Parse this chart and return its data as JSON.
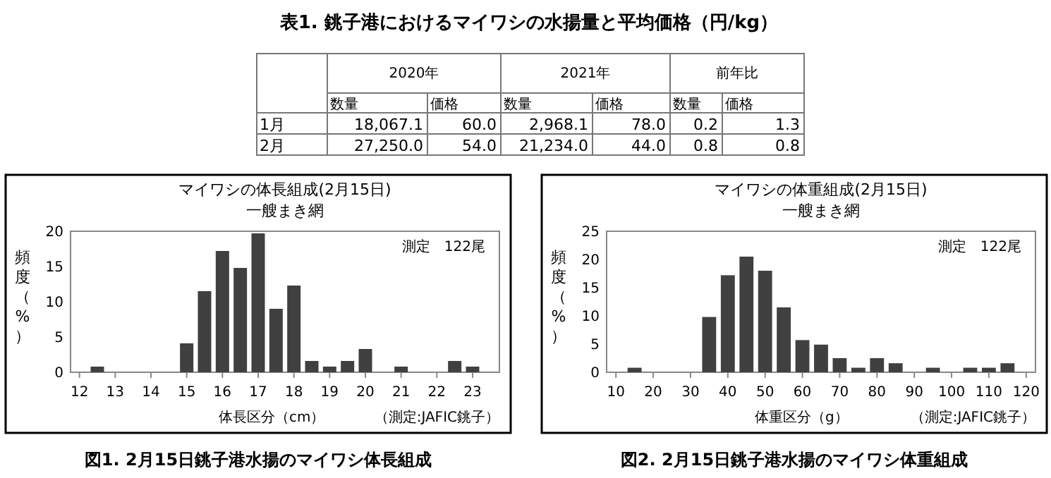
{
  "chart_data": [
    {
      "type": "other",
      "title": "表1. 銚子港におけるマイワシの水揚量と平均価格（円/kg）",
      "annotations": [
        "2020年",
        "2021年",
        "前年比"
      ],
      "categories": [
        "数量",
        "価格",
        "数量",
        "価格",
        "数量",
        "価格"
      ],
      "y_categories": [
        "1月",
        "2月"
      ],
      "cell_labels": [
        [
          "18,067.1",
          "60.0",
          "2,968.1",
          "78.0",
          "0.2",
          "1.3"
        ],
        [
          "27,250.0",
          "54.0",
          "21,234.0",
          "44.0",
          "0.8",
          "0.8"
        ]
      ]
    },
    {
      "type": "histogram",
      "title": "マイワシの体長組成(2月15日)",
      "subtitle": "一艘まき網",
      "xlabel": "体長区分（cm）",
      "ylabel": "頻度（%）",
      "annotations": [
        "測定　122尾",
        "（測定:JAFIC銚子）",
        "図1. 2月15日銚子港水揚のマイワシ体長組成"
      ],
      "color": "#404040",
      "grid": false,
      "bins": [
        11.75,
        12.25,
        12.75,
        13.25,
        13.75,
        14.25,
        14.75,
        15.25,
        15.75,
        16.25,
        16.75,
        17.25,
        17.75,
        18.25,
        18.75,
        19.25,
        19.75,
        20.25,
        20.75,
        21.25,
        21.75,
        22.25,
        22.75,
        23.25,
        23.75
      ],
      "values": [
        0,
        0.8,
        0,
        0,
        0,
        0,
        4.1,
        11.5,
        17.2,
        14.8,
        19.7,
        9,
        12.3,
        1.6,
        0.8,
        1.6,
        3.3,
        0,
        0.8,
        0,
        0,
        1.6,
        0.8,
        0
      ],
      "xlim": [
        11.75,
        23.75
      ],
      "xticks": [
        12,
        13,
        14,
        15,
        16,
        17,
        18,
        19,
        20,
        21,
        22,
        23
      ],
      "ylim": [
        0,
        20
      ],
      "yticks": [
        0,
        5,
        10,
        15,
        20
      ]
    },
    {
      "type": "histogram",
      "title": "マイワシの体重組成(2月15日)",
      "subtitle": "一艘まき網",
      "xlabel": "体重区分（g）",
      "ylabel": "頻度（%）",
      "annotations": [
        "測定　122尾",
        "（測定:JAFIC銚子）",
        "図2. 2月15日銚子港水揚のマイワシ体重組成"
      ],
      "color": "#404040",
      "grid": false,
      "bins": [
        7.5,
        12.5,
        17.5,
        22.5,
        27.5,
        32.5,
        37.5,
        42.5,
        47.5,
        52.5,
        57.5,
        62.5,
        67.5,
        72.5,
        77.5,
        82.5,
        87.5,
        92.5,
        97.5,
        102.5,
        107.5,
        112.5,
        117.5,
        122.5
      ],
      "values": [
        0,
        0.8,
        0,
        0,
        0,
        9.8,
        17.2,
        20.5,
        18,
        11.5,
        5.7,
        4.9,
        2.5,
        0.8,
        2.5,
        1.6,
        0,
        0.8,
        0,
        0.8,
        0.8,
        1.6,
        0
      ],
      "xlim": [
        7.5,
        122.5
      ],
      "xticks": [
        10,
        20,
        30,
        40,
        50,
        60,
        70,
        80,
        90,
        100,
        110,
        120
      ],
      "ylim": [
        0,
        25
      ],
      "yticks": [
        0,
        5,
        10,
        15,
        20,
        25
      ]
    }
  ]
}
